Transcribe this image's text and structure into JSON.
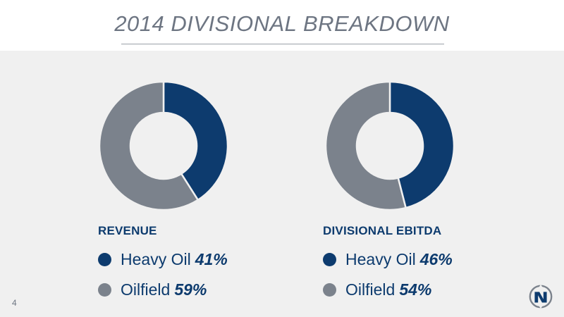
{
  "slide": {
    "title": "2014 DIVISIONAL BREAKDOWN",
    "page_number": "4"
  },
  "colors": {
    "heavy_oil": "#0d3b6e",
    "oilfield": "#7b828c"
  },
  "chart_data": [
    {
      "type": "pie",
      "style": "donut",
      "title": "REVENUE",
      "categories": [
        "Heavy Oil",
        "Oilfield"
      ],
      "values": [
        41,
        59
      ],
      "value_labels": [
        "41%",
        "59%"
      ]
    },
    {
      "type": "pie",
      "style": "donut",
      "title": "DIVISIONAL EBITDA",
      "categories": [
        "Heavy Oil",
        "Oilfield"
      ],
      "values": [
        46,
        54
      ],
      "value_labels": [
        "46%",
        "54%"
      ]
    }
  ]
}
